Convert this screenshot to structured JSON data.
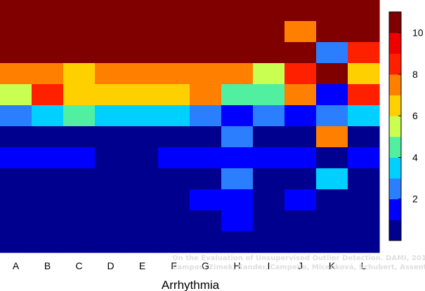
{
  "chart_data": {
    "type": "heatmap",
    "xlabel": "Arrhythmia",
    "categories": [
      "A",
      "B",
      "C",
      "D",
      "E",
      "F",
      "G",
      "H",
      "I",
      "J",
      "K",
      "L"
    ],
    "rows": 12,
    "zlim": [
      0,
      11
    ],
    "colorbar_ticks": [
      2,
      4,
      6,
      8,
      10
    ],
    "colormap": [
      "#00008f",
      "#0000ff",
      "#2b7fff",
      "#00d0ff",
      "#50f0a0",
      "#c8ff50",
      "#ffd000",
      "#ff8000",
      "#ff2000",
      "#ee0000",
      "#800000"
    ],
    "grid": false,
    "legend": "colorbar-right",
    "values": [
      [
        11,
        11,
        11,
        11,
        11,
        11,
        11,
        11,
        11,
        11,
        11,
        11
      ],
      [
        11,
        11,
        11,
        11,
        11,
        11,
        11,
        11,
        11,
        8,
        11,
        11
      ],
      [
        11,
        11,
        11,
        11,
        11,
        11,
        11,
        11,
        11,
        11,
        3,
        9
      ],
      [
        8,
        8,
        7,
        8,
        8,
        8,
        8,
        8,
        6,
        9,
        11,
        7
      ],
      [
        6,
        9,
        7,
        7,
        7,
        7,
        8,
        5,
        5,
        8,
        2,
        9
      ],
      [
        3,
        4,
        5,
        4,
        4,
        4,
        3,
        2,
        3,
        2,
        3,
        4
      ],
      [
        1,
        1,
        1,
        1,
        1,
        1,
        1,
        3,
        1,
        1,
        8,
        1
      ],
      [
        2,
        2,
        2,
        1,
        1,
        2,
        2,
        2,
        2,
        2,
        1,
        2
      ],
      [
        1,
        1,
        1,
        1,
        1,
        1,
        1,
        3,
        1,
        1,
        4,
        1
      ],
      [
        1,
        1,
        1,
        1,
        1,
        1,
        2,
        2,
        1,
        2,
        1,
        1
      ],
      [
        1,
        1,
        1,
        1,
        1,
        1,
        1,
        2,
        1,
        1,
        1,
        1
      ],
      [
        1,
        1,
        1,
        1,
        1,
        1,
        1,
        1,
        1,
        1,
        1,
        1
      ]
    ]
  },
  "watermark": {
    "line1": "On the Evaluation of Unsupervised Outlier Detection. DAMI, 2015.",
    "line2": "Campos, Zimek, Sander, Campello, Micenková, Schubert, Assent, Houle"
  }
}
